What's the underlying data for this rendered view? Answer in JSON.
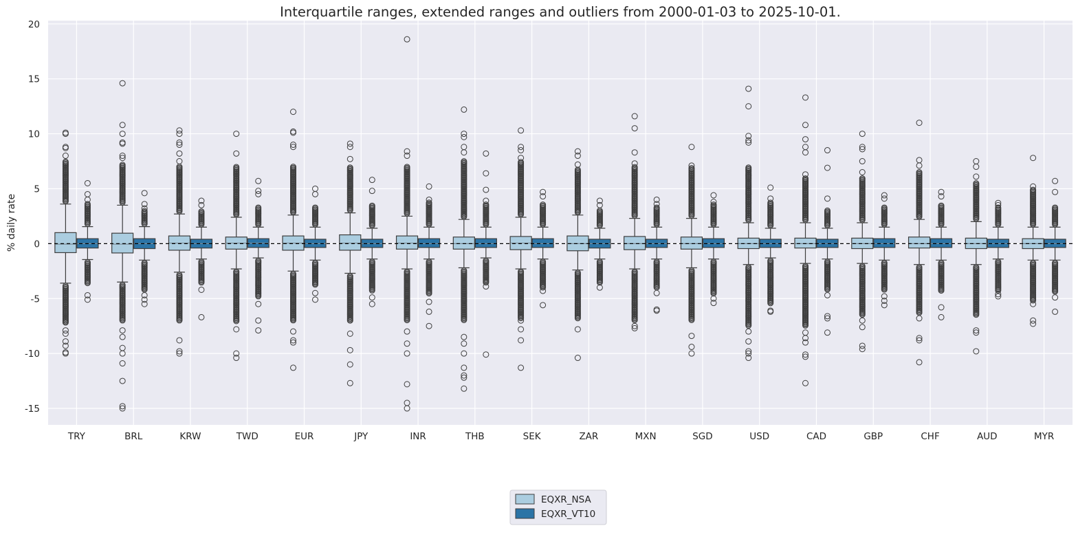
{
  "chart_data": {
    "type": "box",
    "title": "Interquartile ranges, extended ranges and outliers from 2000-01-03 to 2025-10-01.",
    "ylabel": "% daily rate",
    "ylim": [
      -16.5,
      20.3
    ],
    "yticks": [
      -15,
      -10,
      -5,
      0,
      5,
      10,
      15,
      20
    ],
    "grid": true,
    "reference_line": 0,
    "legend_position": "bottom-center",
    "series_names": [
      "EQXR_NSA",
      "EQXR_VT10"
    ],
    "colors": {
      "EQXR_NSA": "#abcde0",
      "EQXR_VT10": "#2b74a6",
      "background": "#eaeaf2",
      "edge": "#3d3d3d"
    },
    "box_fields": [
      "whisker_low",
      "q1",
      "median",
      "q3",
      "whisker_high"
    ],
    "categories": [
      {
        "cat": "TRY",
        "nsa": {
          "box": [
            -3.6,
            -0.82,
            -0.05,
            1.0,
            3.6
          ],
          "dense": [
            -7.2,
            7.5
          ],
          "out": [
            10.1,
            10.0,
            8.8,
            8.7,
            8.0,
            -7.9,
            -8.2,
            -8.9,
            -9.3,
            -9.9,
            -10.0
          ]
        },
        "vt": {
          "box": [
            -1.45,
            -0.4,
            0,
            0.45,
            1.55
          ],
          "dense": [
            -3.6,
            3.6
          ],
          "out": [
            5.5,
            4.5,
            4.0,
            -4.7,
            -5.1
          ]
        }
      },
      {
        "cat": "BRL",
        "nsa": {
          "box": [
            -3.5,
            -0.85,
            -0.05,
            0.95,
            3.5
          ],
          "dense": [
            -7.0,
            7.2
          ],
          "out": [
            14.6,
            10.8,
            10.0,
            9.2,
            9.1,
            8.0,
            7.8,
            -7.9,
            -8.5,
            -9.5,
            -10.0,
            -10.9,
            -12.5,
            -14.8,
            -15.0
          ]
        },
        "vt": {
          "box": [
            -1.5,
            -0.45,
            0,
            0.45,
            1.55
          ],
          "dense": [
            -4.2,
            3.0
          ],
          "out": [
            4.6,
            3.6,
            3.2,
            -4.7,
            -5.1,
            -5.5
          ]
        }
      },
      {
        "cat": "KRW",
        "nsa": {
          "box": [
            -2.6,
            -0.6,
            0.05,
            0.7,
            2.7
          ],
          "dense": [
            -7.0,
            7.0
          ],
          "out": [
            10.3,
            10.0,
            9.2,
            9.0,
            8.2,
            7.5,
            -8.8,
            -9.8,
            -10.0
          ]
        },
        "vt": {
          "box": [
            -1.4,
            -0.4,
            0,
            0.4,
            1.5
          ],
          "dense": [
            -3.6,
            3.0
          ],
          "out": [
            3.9,
            3.5,
            -4.2,
            -6.7
          ]
        }
      },
      {
        "cat": "TWD",
        "nsa": {
          "box": [
            -2.3,
            -0.5,
            0.05,
            0.6,
            2.4
          ],
          "dense": [
            -7.1,
            7.0
          ],
          "out": [
            10.0,
            8.2,
            -7.8,
            -10.0,
            -10.4
          ]
        },
        "vt": {
          "box": [
            -1.3,
            -0.35,
            0.05,
            0.45,
            1.5
          ],
          "dense": [
            -4.8,
            3.3
          ],
          "out": [
            5.7,
            4.8,
            4.5,
            -5.5,
            -7.0,
            -7.9
          ]
        }
      },
      {
        "cat": "EUR",
        "nsa": {
          "box": [
            -2.5,
            -0.6,
            0.05,
            0.7,
            2.6
          ],
          "dense": [
            -7.0,
            7.0
          ],
          "out": [
            12.0,
            10.2,
            10.1,
            9.0,
            8.8,
            -8.0,
            -8.8,
            -9.0,
            -11.3
          ]
        },
        "vt": {
          "box": [
            -1.5,
            -0.35,
            0,
            0.4,
            1.5
          ],
          "dense": [
            -3.8,
            3.3
          ],
          "out": [
            5.0,
            4.5,
            -4.5,
            -5.1
          ]
        }
      },
      {
        "cat": "JPY",
        "nsa": {
          "box": [
            -2.7,
            -0.6,
            0.05,
            0.8,
            2.8
          ],
          "dense": [
            -7.0,
            7.0
          ],
          "out": [
            9.1,
            8.8,
            7.7,
            -8.2,
            -9.7,
            -11.0,
            -12.7
          ]
        },
        "vt": {
          "box": [
            -1.4,
            -0.35,
            0,
            0.4,
            1.4
          ],
          "dense": [
            -4.3,
            3.5
          ],
          "out": [
            5.8,
            4.8,
            -4.9,
            -5.5
          ]
        }
      },
      {
        "cat": "INR",
        "nsa": {
          "box": [
            -2.3,
            -0.5,
            0.05,
            0.7,
            2.5
          ],
          "dense": [
            -7.0,
            7.0
          ],
          "out": [
            18.6,
            8.4,
            8.0,
            -8.0,
            -9.1,
            -10.0,
            -12.8,
            -14.5,
            -15.0
          ]
        },
        "vt": {
          "box": [
            -1.4,
            -0.35,
            0,
            0.45,
            1.5
          ],
          "dense": [
            -4.6,
            3.8
          ],
          "out": [
            5.2,
            4.0,
            -5.3,
            -6.2,
            -7.5
          ]
        }
      },
      {
        "cat": "THB",
        "nsa": {
          "box": [
            -2.2,
            -0.5,
            0,
            0.6,
            2.2
          ],
          "dense": [
            -7.0,
            7.5
          ],
          "out": [
            12.2,
            10.0,
            9.7,
            8.8,
            8.3,
            -8.5,
            -9.1,
            -10.0,
            -11.3,
            -12.0,
            -12.2,
            -13.2
          ]
        },
        "vt": {
          "box": [
            -1.3,
            -0.35,
            0,
            0.45,
            1.5
          ],
          "dense": [
            -3.6,
            3.6
          ],
          "out": [
            8.2,
            6.4,
            4.9,
            3.9,
            -3.9,
            -10.1
          ]
        }
      },
      {
        "cat": "SEK",
        "nsa": {
          "box": [
            -2.3,
            -0.55,
            0.05,
            0.65,
            2.4
          ],
          "dense": [
            -6.8,
            7.5
          ],
          "out": [
            10.3,
            8.8,
            8.5,
            7.8,
            -7.0,
            -7.8,
            -8.8,
            -11.3
          ]
        },
        "vt": {
          "box": [
            -1.4,
            -0.35,
            0,
            0.45,
            1.5
          ],
          "dense": [
            -4.0,
            3.6
          ],
          "out": [
            4.7,
            4.3,
            -4.3,
            -5.6
          ]
        }
      },
      {
        "cat": "ZAR",
        "nsa": {
          "box": [
            -2.4,
            -0.65,
            0,
            0.7,
            2.6
          ],
          "dense": [
            -6.8,
            6.8
          ],
          "out": [
            8.4,
            8.0,
            7.2,
            -7.8,
            -10.4
          ]
        },
        "vt": {
          "box": [
            -1.4,
            -0.4,
            0,
            0.4,
            1.4
          ],
          "dense": [
            -3.6,
            3.0
          ],
          "out": [
            3.9,
            3.5,
            -4.0
          ]
        }
      },
      {
        "cat": "MXN",
        "nsa": {
          "box": [
            -2.3,
            -0.55,
            0,
            0.65,
            2.3
          ],
          "dense": [
            -7.0,
            7.0
          ],
          "out": [
            11.6,
            10.5,
            8.3,
            7.3,
            -7.5,
            -7.7
          ]
        },
        "vt": {
          "box": [
            -1.4,
            -0.35,
            0,
            0.4,
            1.5
          ],
          "dense": [
            -4.0,
            3.3
          ],
          "out": [
            4.0,
            3.6,
            -4.5,
            -6.0,
            -6.1
          ]
        }
      },
      {
        "cat": "SGD",
        "nsa": {
          "box": [
            -2.2,
            -0.5,
            0,
            0.6,
            2.3
          ],
          "dense": [
            -7.0,
            6.9
          ],
          "out": [
            8.8,
            7.1,
            -8.4,
            -9.4,
            -10.0
          ]
        },
        "vt": {
          "box": [
            -1.4,
            -0.35,
            0,
            0.45,
            1.5
          ],
          "dense": [
            -4.6,
            3.6
          ],
          "out": [
            4.4,
            3.8,
            -5.0,
            -5.4
          ]
        }
      },
      {
        "cat": "USD",
        "nsa": {
          "box": [
            -1.9,
            -0.45,
            0,
            0.5,
            1.9
          ],
          "dense": [
            -7.5,
            7.0
          ],
          "out": [
            14.1,
            12.5,
            9.8,
            9.4,
            9.2,
            -8.0,
            -8.9,
            -9.8,
            -10.0,
            -10.4
          ]
        },
        "vt": {
          "box": [
            -1.3,
            -0.35,
            0,
            0.4,
            1.4
          ],
          "dense": [
            -5.5,
            3.8
          ],
          "out": [
            5.1,
            4.1,
            -6.1,
            -6.2
          ]
        }
      },
      {
        "cat": "CAD",
        "nsa": {
          "box": [
            -1.8,
            -0.4,
            0,
            0.5,
            1.9
          ],
          "dense": [
            -7.5,
            6.0
          ],
          "out": [
            13.3,
            10.8,
            9.5,
            8.8,
            8.3,
            6.3,
            -8.1,
            -8.6,
            -9.0,
            -10.1,
            -10.3,
            -12.7
          ]
        },
        "vt": {
          "box": [
            -1.4,
            -0.35,
            0,
            0.4,
            1.4
          ],
          "dense": [
            -4.2,
            3.0
          ],
          "out": [
            8.5,
            6.9,
            4.1,
            -4.7,
            -6.6,
            -6.8,
            -8.1
          ]
        }
      },
      {
        "cat": "GBP",
        "nsa": {
          "box": [
            -1.8,
            -0.45,
            0,
            0.5,
            1.9
          ],
          "dense": [
            -6.5,
            6.0
          ],
          "out": [
            10.0,
            8.8,
            8.6,
            7.5,
            6.5,
            -7.0,
            -7.6,
            -9.3,
            -9.6
          ]
        },
        "vt": {
          "box": [
            -1.5,
            -0.35,
            0,
            0.45,
            1.5
          ],
          "dense": [
            -4.2,
            3.3
          ],
          "out": [
            4.4,
            4.1,
            -4.8,
            -5.2,
            -5.6
          ]
        }
      },
      {
        "cat": "CHF",
        "nsa": {
          "box": [
            -1.9,
            -0.4,
            0,
            0.6,
            2.2
          ],
          "dense": [
            -6.3,
            6.5
          ],
          "out": [
            11.0,
            7.6,
            7.1,
            -6.8,
            -8.6,
            -8.8,
            -10.8
          ]
        },
        "vt": {
          "box": [
            -1.5,
            -0.35,
            0,
            0.45,
            1.5
          ],
          "dense": [
            -4.3,
            3.5
          ],
          "out": [
            4.7,
            4.3,
            -5.8,
            -6.7
          ]
        }
      },
      {
        "cat": "AUD",
        "nsa": {
          "box": [
            -1.9,
            -0.45,
            0,
            0.5,
            2.0
          ],
          "dense": [
            -6.5,
            5.5
          ],
          "out": [
            7.5,
            7.0,
            6.1,
            -7.9,
            -8.1,
            -9.8
          ]
        },
        "vt": {
          "box": [
            -1.4,
            -0.35,
            0,
            0.4,
            1.5
          ],
          "dense": [
            -4.3,
            3.3
          ],
          "out": [
            3.7,
            3.5,
            -4.6,
            -4.8
          ]
        }
      },
      {
        "cat": "MYR",
        "nsa": {
          "box": [
            -1.5,
            -0.45,
            0,
            0.45,
            1.5
          ],
          "dense": [
            -5.2,
            4.9
          ],
          "out": [
            7.8,
            5.2,
            -5.5,
            -7.0,
            -7.3
          ]
        },
        "vt": {
          "box": [
            -1.5,
            -0.35,
            0,
            0.4,
            1.5
          ],
          "dense": [
            -4.4,
            3.3
          ],
          "out": [
            5.7,
            4.7,
            -4.9,
            -6.2
          ]
        }
      }
    ]
  }
}
